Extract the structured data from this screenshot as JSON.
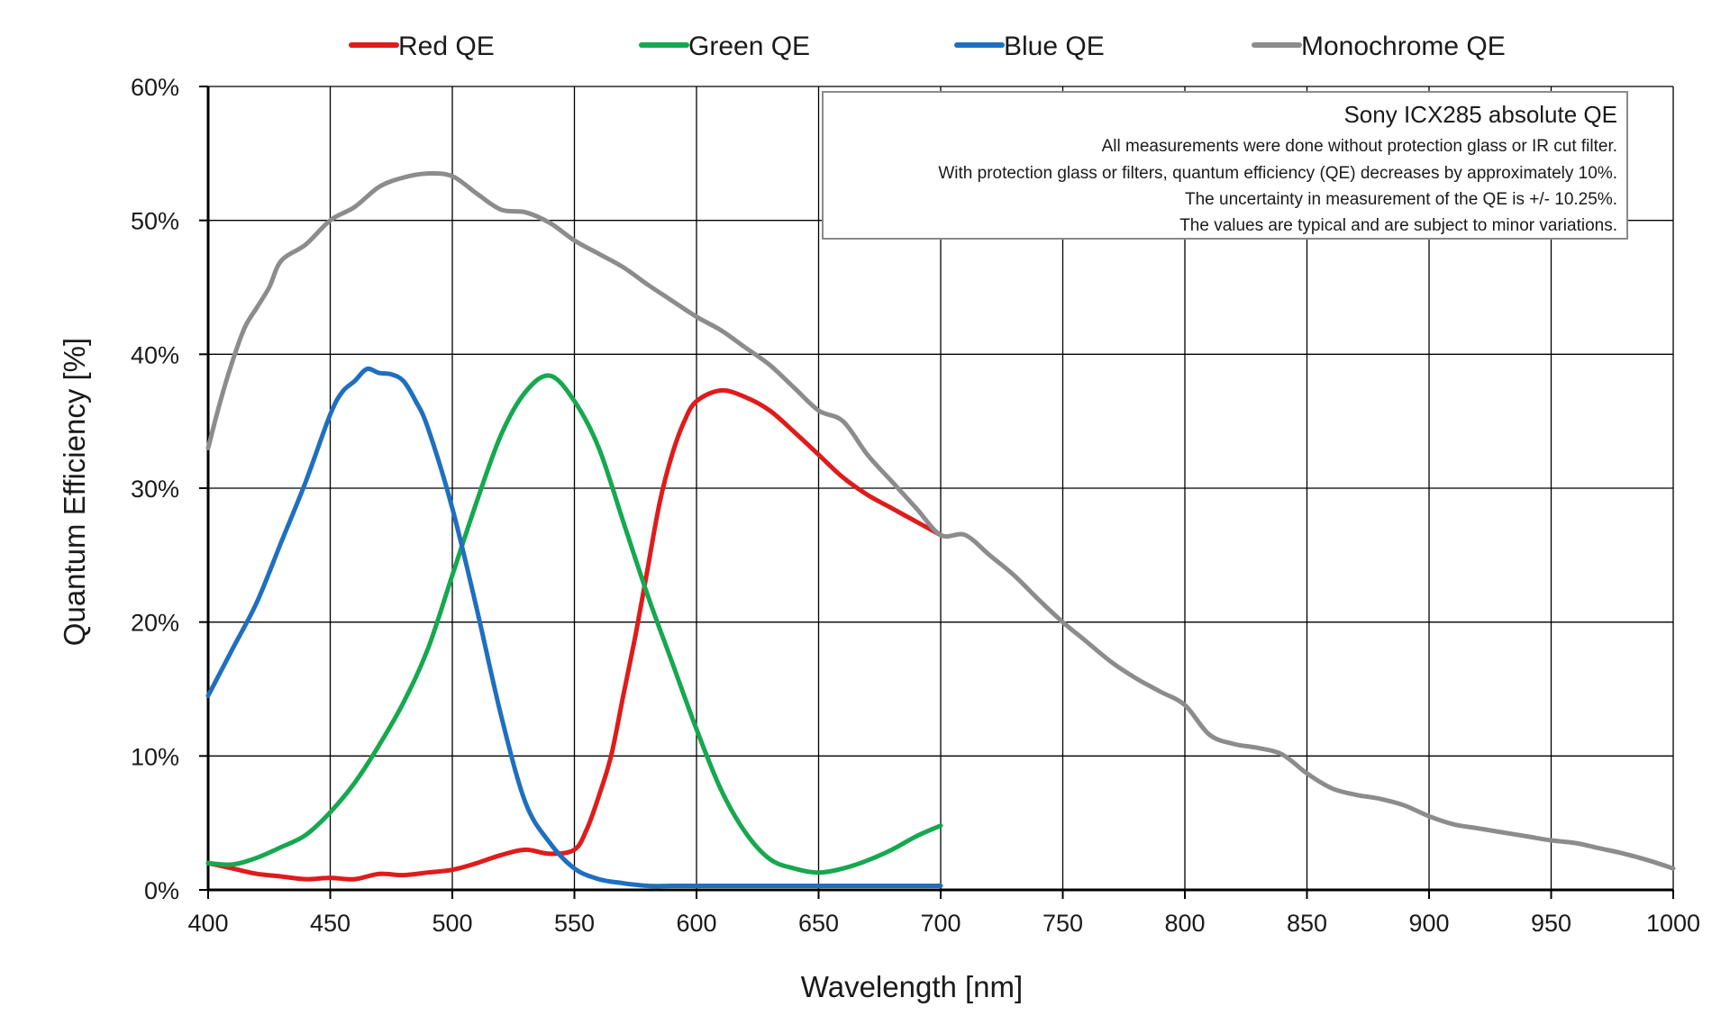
{
  "chart_data": {
    "type": "line",
    "title": "",
    "xlabel": "Wavelength [nm]",
    "ylabel": "Quantum Efficiency [%]",
    "xlim": [
      400,
      1000
    ],
    "ylim": [
      0,
      60
    ],
    "x_ticks": [
      "400",
      "450",
      "500",
      "550",
      "600",
      "650",
      "700",
      "750",
      "800",
      "850",
      "900",
      "950",
      "1000"
    ],
    "y_ticks": [
      "0%",
      "10%",
      "20%",
      "30%",
      "40%",
      "50%",
      "60%"
    ],
    "grid": true,
    "legend_position": "top",
    "annotation": {
      "title": "Sony ICX285 absolute QE",
      "lines": [
        "All measurements were done without protection glass or IR cut filter.",
        "With protection glass or filters, quantum efficiency (QE) decreases by approximately 10%.",
        "The uncertainty in measurement of the QE is +/- 10.25%.",
        "The values are typical and are subject to minor variations."
      ]
    },
    "series": [
      {
        "name": "Red QE",
        "color": "#e01b1b",
        "x": [
          400,
          410,
          420,
          430,
          440,
          450,
          460,
          470,
          480,
          490,
          500,
          510,
          520,
          530,
          540,
          550,
          555,
          560,
          565,
          570,
          575,
          580,
          585,
          590,
          595,
          600,
          610,
          620,
          630,
          640,
          650,
          660,
          670,
          680,
          690,
          700
        ],
        "y": [
          2.0,
          1.6,
          1.2,
          1.0,
          0.8,
          0.9,
          0.8,
          1.2,
          1.1,
          1.3,
          1.5,
          2.0,
          2.6,
          3.0,
          2.7,
          3.0,
          4.5,
          7.0,
          10.0,
          14.5,
          19.0,
          24.0,
          29.0,
          32.5,
          35.0,
          36.5,
          37.3,
          36.8,
          35.8,
          34.2,
          32.5,
          30.8,
          29.5,
          28.5,
          27.5,
          26.5
        ]
      },
      {
        "name": "Green QE",
        "color": "#16a84f",
        "x": [
          400,
          410,
          420,
          430,
          440,
          450,
          460,
          470,
          480,
          490,
          500,
          510,
          520,
          530,
          540,
          550,
          560,
          570,
          580,
          590,
          600,
          610,
          620,
          630,
          640,
          650,
          660,
          670,
          680,
          690,
          700
        ],
        "y": [
          2.0,
          1.9,
          2.4,
          3.2,
          4.1,
          5.8,
          8.0,
          10.8,
          14.0,
          18.0,
          23.5,
          29.0,
          34.0,
          37.2,
          38.4,
          36.5,
          33.0,
          27.5,
          22.0,
          17.0,
          12.0,
          7.5,
          4.3,
          2.3,
          1.6,
          1.3,
          1.6,
          2.2,
          3.0,
          4.0,
          4.8
        ]
      },
      {
        "name": "Blue QE",
        "color": "#1f6fc0",
        "x": [
          400,
          410,
          420,
          430,
          440,
          450,
          455,
          460,
          465,
          470,
          475,
          480,
          485,
          490,
          500,
          510,
          520,
          530,
          540,
          550,
          560,
          570,
          580,
          590,
          600,
          620,
          640,
          660,
          680,
          700
        ],
        "y": [
          14.5,
          18.0,
          21.5,
          26.0,
          30.5,
          35.5,
          37.2,
          38.0,
          38.9,
          38.6,
          38.5,
          38.0,
          36.5,
          34.5,
          28.5,
          21.0,
          13.0,
          6.5,
          3.5,
          1.6,
          0.8,
          0.5,
          0.3,
          0.3,
          0.3,
          0.3,
          0.3,
          0.3,
          0.3,
          0.3
        ]
      },
      {
        "name": "Monochrome QE",
        "color": "#8c8c8c",
        "x": [
          400,
          405,
          410,
          415,
          420,
          425,
          430,
          440,
          450,
          460,
          470,
          480,
          490,
          500,
          510,
          520,
          530,
          540,
          550,
          560,
          570,
          580,
          590,
          600,
          610,
          620,
          630,
          640,
          650,
          660,
          670,
          680,
          690,
          700,
          710,
          720,
          730,
          740,
          750,
          760,
          770,
          780,
          790,
          800,
          810,
          820,
          830,
          840,
          850,
          860,
          870,
          880,
          890,
          900,
          910,
          920,
          930,
          940,
          950,
          960,
          970,
          980,
          990,
          1000
        ],
        "y": [
          33.0,
          36.5,
          39.5,
          42.0,
          43.5,
          45.0,
          47.0,
          48.2,
          50.0,
          51.0,
          52.5,
          53.2,
          53.5,
          53.3,
          52.0,
          50.8,
          50.6,
          49.8,
          48.5,
          47.5,
          46.5,
          45.2,
          44.0,
          42.8,
          41.8,
          40.5,
          39.2,
          37.5,
          35.8,
          35.0,
          32.5,
          30.5,
          28.5,
          26.5,
          26.5,
          25.0,
          23.5,
          21.7,
          20.0,
          18.5,
          17.0,
          15.8,
          14.8,
          13.8,
          11.6,
          10.9,
          10.6,
          10.1,
          8.7,
          7.6,
          7.1,
          6.8,
          6.3,
          5.5,
          4.9,
          4.6,
          4.3,
          4.0,
          3.7,
          3.5,
          3.1,
          2.7,
          2.2,
          1.6
        ]
      }
    ]
  }
}
